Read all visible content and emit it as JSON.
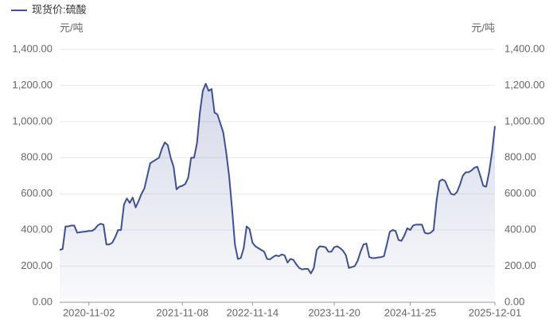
{
  "chart_data": {
    "type": "line",
    "y_label": "元/吨",
    "y2_label": "元/吨",
    "categories": [
      null,
      null,
      null,
      null,
      null,
      null,
      null,
      null,
      null,
      null,
      "2020-11-02",
      null,
      null,
      null,
      null,
      null,
      null,
      null,
      null,
      null,
      null,
      null,
      null,
      null,
      null,
      null,
      null,
      null,
      null,
      null,
      null,
      null,
      null,
      null,
      null,
      null,
      null,
      null,
      null,
      null,
      null,
      null,
      "2021-11-08",
      null,
      null,
      null,
      null,
      null,
      null,
      null,
      null,
      null,
      null,
      null,
      null,
      null,
      null,
      null,
      null,
      null,
      null,
      null,
      null,
      null,
      null,
      null,
      "2022-11-14",
      null,
      null,
      null,
      null,
      null,
      null,
      null,
      null,
      null,
      null,
      null,
      null,
      null,
      null,
      null,
      null,
      null,
      null,
      null,
      null,
      null,
      null,
      null,
      null,
      null,
      null,
      null,
      "2023-11-20",
      null,
      null,
      null,
      null,
      null,
      null,
      null,
      null,
      null,
      null,
      null,
      null,
      null,
      null,
      null,
      null,
      null,
      null,
      null,
      null,
      null,
      null,
      null,
      null,
      null,
      "2024-11-25",
      null,
      null,
      null,
      null,
      null,
      null,
      null,
      null,
      null,
      null,
      null,
      null,
      null,
      null,
      null,
      null,
      null,
      null,
      null,
      null,
      null,
      null,
      null,
      null,
      null,
      null,
      null,
      null,
      "2025-12-01"
    ],
    "series": [
      {
        "name": "现货价:硫酸",
        "color": "#3f4f96",
        "values": [
          290,
          295,
          420,
          420,
          425,
          425,
          385,
          388,
          390,
          392,
          395,
          395,
          405,
          425,
          435,
          430,
          320,
          320,
          330,
          360,
          400,
          400,
          540,
          575,
          550,
          580,
          525,
          560,
          600,
          630,
          700,
          770,
          780,
          790,
          800,
          850,
          885,
          870,
          800,
          750,
          625,
          640,
          645,
          655,
          690,
          800,
          800,
          880,
          1050,
          1170,
          1210,
          1170,
          1180,
          1050,
          1040,
          990,
          940,
          830,
          700,
          520,
          320,
          240,
          245,
          300,
          420,
          405,
          330,
          310,
          300,
          290,
          280,
          240,
          238,
          250,
          260,
          255,
          265,
          260,
          220,
          240,
          235,
          210,
          190,
          182,
          185,
          185,
          160,
          190,
          290,
          310,
          308,
          305,
          280,
          280,
          305,
          310,
          300,
          285,
          260,
          190,
          195,
          200,
          230,
          280,
          320,
          325,
          250,
          245,
          245,
          248,
          250,
          255,
          320,
          390,
          400,
          395,
          345,
          340,
          370,
          410,
          400,
          425,
          430,
          430,
          430,
          385,
          380,
          385,
          400,
          560,
          670,
          680,
          670,
          630,
          600,
          595,
          610,
          650,
          700,
          720,
          720,
          730,
          745,
          750,
          700,
          645,
          640,
          720,
          830,
          975
        ]
      }
    ],
    "ylim": [
      0,
      1400
    ],
    "y2lim": [
      0,
      1400
    ],
    "yticks": [
      {
        "value": 0,
        "label": "0.00"
      },
      {
        "value": 200,
        "label": "200.00"
      },
      {
        "value": 400,
        "label": "400.00"
      },
      {
        "value": 600,
        "label": "600.00"
      },
      {
        "value": 800,
        "label": "800.00"
      },
      {
        "value": 1000,
        "label": "1,000.00"
      },
      {
        "value": 1200,
        "label": "1,200.00"
      },
      {
        "value": 1400,
        "label": "1,400.00"
      }
    ],
    "y2ticks": [
      {
        "value": 0,
        "label": "0.00"
      },
      {
        "value": 200,
        "label": "200.00"
      },
      {
        "value": 400,
        "label": "400.00"
      },
      {
        "value": 600,
        "label": "600.00"
      },
      {
        "value": 800,
        "label": "800.00"
      },
      {
        "value": 1000,
        "label": "1,000.00"
      },
      {
        "value": 1200,
        "label": "1,200.00"
      },
      {
        "value": 1400,
        "label": "1,400.00"
      }
    ],
    "grid": true
  }
}
